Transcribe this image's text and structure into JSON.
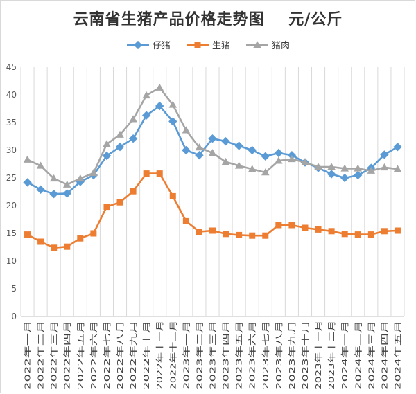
{
  "chart_data": {
    "type": "line",
    "title": "云南省生猪产品价格走势图    元/公斤",
    "xlabel": "",
    "ylabel": "",
    "ylim": [
      0,
      45
    ],
    "yticks": [
      "0",
      "5",
      "10",
      "15",
      "20",
      "25",
      "30",
      "35",
      "40",
      "45"
    ],
    "grid": "vertical",
    "legend_position": "top",
    "categories": [
      "2022年一月",
      "2022年二月",
      "2022年三月",
      "2022年四月",
      "2022年五月",
      "2022年六月",
      "2022年七月",
      "2022年八月",
      "2022年九月",
      "2022年十月",
      "2022年十一月",
      "2022年十二月",
      "2023年一月",
      "2023年二月",
      "2023年三月",
      "2023年四月",
      "2023年五月",
      "2023年六月",
      "2023年七月",
      "2023年八月",
      "2023年九月",
      "2023年十月",
      "2023年十一月",
      "2023年十二月",
      "2024年一月",
      "2024年二月",
      "2024年三月",
      "2024年四月",
      "2024年五月"
    ],
    "series": [
      {
        "name": "仔猪",
        "color": "#5b9bd5",
        "marker": "diamond",
        "values": [
          24.2,
          22.9,
          22.1,
          22.2,
          24.3,
          25.5,
          29.0,
          30.6,
          32.1,
          36.3,
          38.0,
          35.2,
          30.0,
          29.1,
          32.1,
          31.6,
          30.8,
          30.0,
          28.9,
          29.5,
          29.1,
          27.8,
          26.8,
          25.7,
          25.0,
          25.5,
          26.8,
          29.2,
          30.6
        ]
      },
      {
        "name": "生猪",
        "color": "#ed7d31",
        "marker": "square",
        "values": [
          14.8,
          13.5,
          12.4,
          12.6,
          14.1,
          15.0,
          19.8,
          20.6,
          22.6,
          25.8,
          25.8,
          21.7,
          17.2,
          15.3,
          15.5,
          14.9,
          14.7,
          14.6,
          14.6,
          16.5,
          16.5,
          16.0,
          15.7,
          15.4,
          14.9,
          14.8,
          14.8,
          15.4,
          15.5
        ]
      },
      {
        "name": "猪肉",
        "color": "#a5a5a5",
        "marker": "triangle",
        "values": [
          28.3,
          27.2,
          24.9,
          23.8,
          24.9,
          25.9,
          31.1,
          32.8,
          35.6,
          39.9,
          41.3,
          38.2,
          33.6,
          30.5,
          29.5,
          27.9,
          27.2,
          26.6,
          26.0,
          28.1,
          28.4,
          27.8,
          27.0,
          27.0,
          26.7,
          26.7,
          26.3,
          26.9,
          26.6
        ]
      }
    ]
  }
}
